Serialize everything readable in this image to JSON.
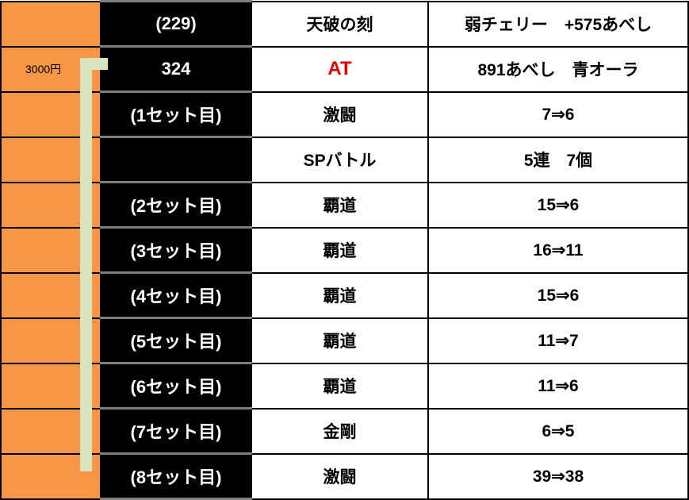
{
  "rows": [
    {
      "money": "",
      "game": "(229)",
      "event": "天破の刻",
      "detail": "弱チェリー　+575あべし"
    },
    {
      "money": "3000円",
      "game": "324",
      "event": "AT",
      "detail": "891あべし　青オーラ"
    },
    {
      "money": "",
      "game": "(1セット目)",
      "event": "激闘",
      "detail": "7⇒6"
    },
    {
      "money": "",
      "game": "",
      "event": "SPバトル",
      "detail": "5連　7個"
    },
    {
      "money": "",
      "game": "(2セット目)",
      "event": "覇道",
      "detail": "15⇒6"
    },
    {
      "money": "",
      "game": "(3セット目)",
      "event": "覇道",
      "detail": "16⇒11"
    },
    {
      "money": "",
      "game": "(4セット目)",
      "event": "覇道",
      "detail": "15⇒6"
    },
    {
      "money": "",
      "game": "(5セット目)",
      "event": "覇道",
      "detail": "11⇒7"
    },
    {
      "money": "",
      "game": "(6セット目)",
      "event": "覇道",
      "detail": "11⇒6"
    },
    {
      "money": "",
      "game": "(7セット目)",
      "event": "金剛",
      "detail": "6⇒5"
    },
    {
      "money": "",
      "game": "(8セット目)",
      "event": "激闘",
      "detail": "39⇒38"
    }
  ],
  "colors": {
    "orange": "#f79646",
    "at_red": "#e00000",
    "bar": "#d7e4bd"
  }
}
